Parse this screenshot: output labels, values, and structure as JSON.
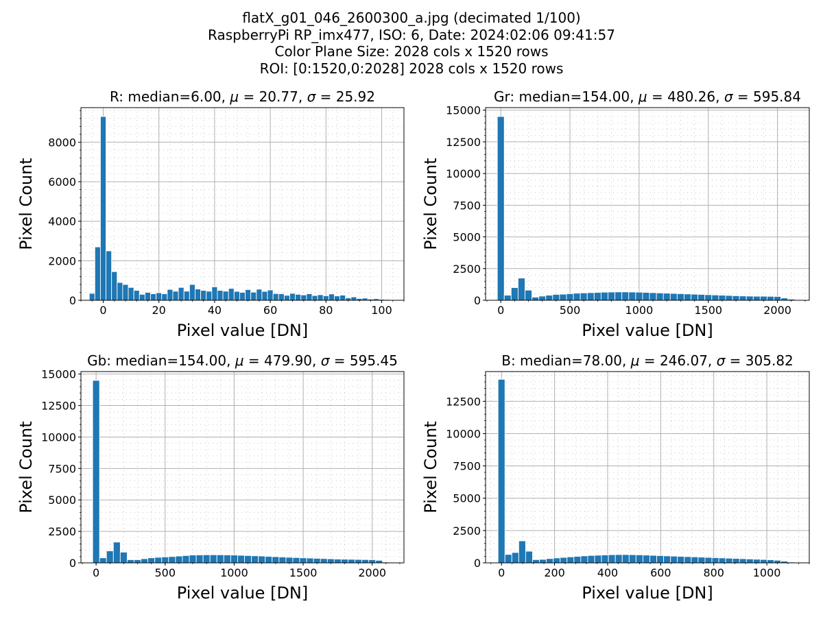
{
  "figure": {
    "title_lines": [
      "flatX_g01_046_2600300_a.jpg (decimated 1/100)",
      "RaspberryPi RP_imx477, ISO: 6, Date: 2024:02:06 09:41:57",
      "Color Plane Size: 2028 cols x 1520 rows",
      "ROI: [0:1520,0:2028] 2028 cols x 1520 rows"
    ]
  },
  "colors": {
    "bar": "#1f77b4",
    "grid": "#b0b0b0",
    "axis": "#000000"
  },
  "chart_data": [
    {
      "type": "bar",
      "title": "R: median=6.00, μ = 20.77, σ = 25.92",
      "title_parts": {
        "prefix": "R: median=6.00, ",
        "mu": "20.77",
        "sigma": "25.92"
      },
      "xlabel": "Pixel value [DN]",
      "ylabel": "Pixel Count",
      "xlim": [
        -8,
        108
      ],
      "ylim": [
        0,
        9750
      ],
      "xticks": [
        0,
        20,
        40,
        60,
        80,
        100
      ],
      "yticks": [
        0,
        2000,
        4000,
        6000,
        8000
      ],
      "grid": true,
      "bin_width": 2,
      "x": [
        -6,
        -4,
        -2,
        0,
        2,
        4,
        6,
        8,
        10,
        12,
        14,
        16,
        18,
        20,
        22,
        24,
        26,
        28,
        30,
        32,
        34,
        36,
        38,
        40,
        42,
        44,
        46,
        48,
        50,
        52,
        54,
        56,
        58,
        60,
        62,
        64,
        66,
        68,
        70,
        72,
        74,
        76,
        78,
        80,
        82,
        84,
        86,
        88,
        90,
        92,
        94,
        96,
        98,
        100,
        102,
        104
      ],
      "values": [
        10,
        350,
        2700,
        9300,
        2500,
        1450,
        900,
        800,
        650,
        500,
        300,
        400,
        330,
        380,
        330,
        550,
        460,
        650,
        460,
        800,
        570,
        500,
        460,
        680,
        500,
        460,
        600,
        450,
        400,
        540,
        410,
        560,
        450,
        520,
        340,
        330,
        250,
        350,
        300,
        270,
        330,
        240,
        280,
        230,
        320,
        220,
        260,
        120,
        170,
        90,
        110,
        60,
        80,
        50,
        40,
        20
      ]
    },
    {
      "type": "bar",
      "title": "Gr: median=154.00, μ = 480.26, σ = 595.84",
      "title_parts": {
        "prefix": "Gr: median=154.00, ",
        "mu": "480.26",
        "sigma": "595.84"
      },
      "xlabel": "Pixel value [DN]",
      "ylabel": "Pixel Count",
      "xlim": [
        -110,
        2230
      ],
      "ylim": [
        0,
        15200
      ],
      "xticks": [
        0,
        500,
        1000,
        1500,
        2000
      ],
      "yticks": [
        0,
        2500,
        5000,
        7500,
        10000,
        12500,
        15000
      ],
      "grid": true,
      "bin_width": 50,
      "x": [
        -50,
        0,
        50,
        100,
        150,
        200,
        250,
        300,
        350,
        400,
        450,
        500,
        550,
        600,
        650,
        700,
        750,
        800,
        850,
        900,
        950,
        1000,
        1050,
        1100,
        1150,
        1200,
        1250,
        1300,
        1350,
        1400,
        1450,
        1500,
        1550,
        1600,
        1650,
        1700,
        1750,
        1800,
        1850,
        1900,
        1950,
        2000,
        2050,
        2100,
        2150
      ],
      "values": [
        10,
        14500,
        400,
        1000,
        1750,
        800,
        250,
        330,
        400,
        460,
        480,
        520,
        560,
        580,
        600,
        620,
        640,
        650,
        660,
        660,
        650,
        640,
        620,
        600,
        580,
        560,
        540,
        520,
        500,
        480,
        460,
        440,
        420,
        400,
        380,
        360,
        340,
        330,
        320,
        320,
        310,
        300,
        180,
        90,
        20
      ]
    },
    {
      "type": "bar",
      "title": "Gb: median=154.00, μ = 479.90, σ = 595.45",
      "title_parts": {
        "prefix": "Gb: median=154.00, ",
        "mu": "479.90",
        "sigma": "595.45"
      },
      "xlabel": "Pixel value [DN]",
      "ylabel": "Pixel Count",
      "xlim": [
        -110,
        2230
      ],
      "ylim": [
        0,
        15200
      ],
      "xticks": [
        0,
        500,
        1000,
        1500,
        2000
      ],
      "yticks": [
        0,
        2500,
        5000,
        7500,
        10000,
        12500,
        15000
      ],
      "grid": true,
      "bin_width": 50,
      "x": [
        -50,
        0,
        50,
        100,
        150,
        200,
        250,
        300,
        350,
        400,
        450,
        500,
        550,
        600,
        650,
        700,
        750,
        800,
        850,
        900,
        950,
        1000,
        1050,
        1100,
        1150,
        1200,
        1250,
        1300,
        1350,
        1400,
        1450,
        1500,
        1550,
        1600,
        1650,
        1700,
        1750,
        1800,
        1850,
        1900,
        1950,
        2000,
        2050,
        2100,
        2150
      ],
      "values": [
        10,
        14500,
        400,
        950,
        1650,
        850,
        250,
        250,
        330,
        400,
        440,
        470,
        500,
        540,
        580,
        620,
        630,
        640,
        640,
        640,
        630,
        620,
        600,
        580,
        560,
        540,
        510,
        490,
        460,
        440,
        420,
        400,
        380,
        360,
        340,
        320,
        300,
        290,
        280,
        270,
        260,
        250,
        200,
        60,
        10
      ]
    },
    {
      "type": "bar",
      "title": "B: median=78.00, μ = 246.07, σ = 305.82",
      "title_parts": {
        "prefix": "B: median=78.00, ",
        "mu": "246.07",
        "sigma": "305.82"
      },
      "xlabel": "Pixel value [DN]",
      "ylabel": "Pixel Count",
      "xlim": [
        -60,
        1160
      ],
      "ylim": [
        0,
        14800
      ],
      "xticks": [
        0,
        200,
        400,
        600,
        800,
        1000
      ],
      "yticks": [
        0,
        2500,
        5000,
        7500,
        10000,
        12500
      ],
      "grid": true,
      "bin_width": 26,
      "x": [
        -26,
        0,
        26,
        52,
        78,
        104,
        130,
        156,
        182,
        208,
        234,
        260,
        286,
        312,
        338,
        364,
        390,
        416,
        442,
        468,
        494,
        520,
        546,
        572,
        598,
        624,
        650,
        676,
        702,
        728,
        754,
        780,
        806,
        832,
        858,
        884,
        910,
        936,
        962,
        988,
        1014,
        1040,
        1066,
        1092,
        1118
      ],
      "values": [
        10,
        14200,
        650,
        800,
        1700,
        900,
        250,
        270,
        330,
        380,
        420,
        460,
        500,
        540,
        570,
        590,
        610,
        630,
        640,
        640,
        630,
        620,
        600,
        580,
        560,
        540,
        520,
        500,
        480,
        460,
        440,
        420,
        400,
        380,
        360,
        340,
        320,
        300,
        280,
        260,
        240,
        200,
        130,
        60,
        20
      ]
    }
  ]
}
